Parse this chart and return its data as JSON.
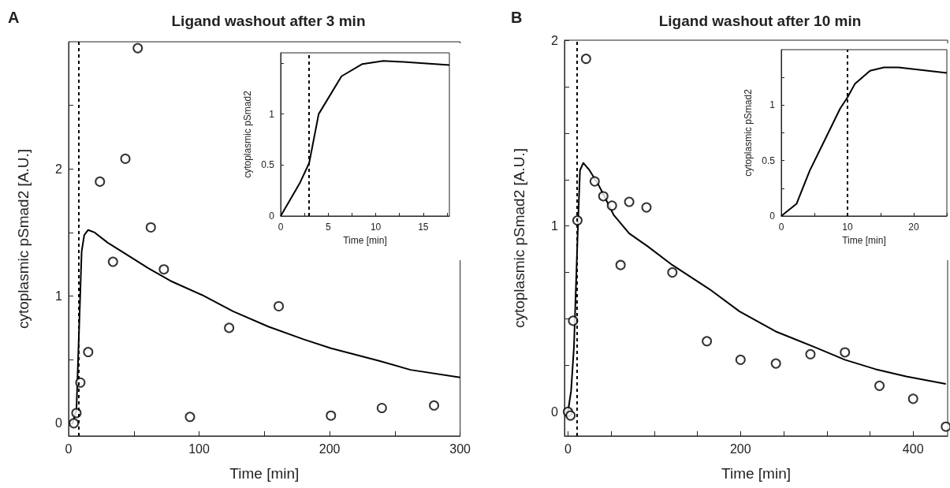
{
  "chart_data": [
    {
      "type": "line",
      "title": "Ligand washout after 3 min",
      "annotations": [
        "A"
      ],
      "xlabel": "Time [min]",
      "ylabel": "cytoplasmic pSmad2 [A.U.]",
      "xlim": [
        0,
        300
      ],
      "xticks": [
        0,
        {
          "value": 50,
          "label": null
        },
        100,
        {
          "value": 150,
          "label": null
        },
        200,
        {
          "value": 250,
          "label": null
        },
        300
      ],
      "ylim": [
        -0.1,
        3.0
      ],
      "yticks": [
        0,
        {
          "value": 0.5,
          "label": null
        },
        1,
        {
          "value": 1.5,
          "label": null
        },
        2,
        {
          "value": 2.5,
          "label": null
        }
      ],
      "series": [
        {
          "type": "scatter",
          "marker": "circle",
          "color": "#000000",
          "x": [
            4,
            6,
            9,
            15,
            24,
            34,
            43.5,
            53,
            63,
            73,
            93,
            123,
            161,
            201,
            240,
            280
          ],
          "values": [
            0,
            0.08,
            0.32,
            0.56,
            1.9,
            1.27,
            2.08,
            2.95,
            1.54,
            1.21,
            0.05,
            0.75,
            0.92,
            0.06,
            0.12,
            0.14
          ]
        },
        {
          "type": "line",
          "marker": "none",
          "color": "#000000",
          "x": [
            3,
            6,
            10,
            12,
            15,
            20,
            30,
            44,
            61,
            78,
            102,
            126,
            153,
            180,
            201,
            238,
            262,
            300
          ],
          "values": [
            0,
            0.1,
            1.35,
            1.48,
            1.52,
            1.5,
            1.42,
            1.33,
            1.22,
            1.12,
            1.01,
            0.88,
            0.76,
            0.66,
            0.59,
            0.49,
            0.42,
            0.36
          ]
        }
      ],
      "ref_lines": [
        {
          "axis": "x",
          "value": 7.5,
          "line_style": "dashed",
          "color": "#000000"
        }
      ]
    },
    {
      "type": "line",
      "xlabel": "Time [min]",
      "ylabel": "cytoplasmic pSmad2",
      "xlim": [
        0,
        17.75
      ],
      "xticks": [
        0,
        {
          "value": 2.5,
          "label": null
        },
        5,
        {
          "value": 7.5,
          "label": null
        },
        10,
        {
          "value": 12.5,
          "label": null
        },
        15,
        {
          "value": 17.5,
          "label": null
        }
      ],
      "ylim": [
        0,
        1.6
      ],
      "yticks": [
        0,
        0.5,
        1,
        {
          "value": 1.5,
          "label": null
        }
      ],
      "series": [
        {
          "type": "line",
          "marker": "none",
          "color": "#000000",
          "x": [
            0,
            2,
            3,
            4,
            6.4,
            8.6,
            10.8,
            13.2,
            17.75
          ],
          "values": [
            0,
            0.32,
            0.52,
            1.0,
            1.37,
            1.49,
            1.52,
            1.51,
            1.48
          ]
        }
      ],
      "ref_lines": [
        {
          "axis": "x",
          "value": 3,
          "line_style": "dashed",
          "color": "#000000"
        }
      ]
    },
    {
      "type": "line",
      "title": "Ligand washout after 10 min",
      "annotations": [
        "B"
      ],
      "xlabel": "Time [min]",
      "ylabel": "cytoplasmic pSmad2 [A.U.]",
      "xlim": [
        -4,
        440
      ],
      "xticks": [
        0,
        {
          "value": 50,
          "label": null
        },
        {
          "value": 100,
          "label": null
        },
        {
          "value": 150,
          "label": null
        },
        200,
        {
          "value": 250,
          "label": null
        },
        {
          "value": 300,
          "label": null
        },
        {
          "value": 350,
          "label": null
        },
        400
      ],
      "ylim": [
        -0.13,
        2
      ],
      "yticks": [
        0,
        {
          "value": 0.25,
          "label": null
        },
        {
          "value": 0.5,
          "label": null
        },
        {
          "value": 0.75,
          "label": null
        },
        1,
        {
          "value": 1.25,
          "label": null
        },
        {
          "value": 1.5,
          "label": null
        },
        {
          "value": 1.75,
          "label": null
        },
        2
      ],
      "series": [
        {
          "type": "scatter",
          "marker": "circle",
          "color": "#000000",
          "x": [
            0,
            3,
            6,
            11,
            21,
            31,
            41,
            51,
            61,
            71,
            91,
            121,
            161,
            200,
            241,
            281,
            321,
            361,
            400,
            438
          ],
          "values": [
            0,
            -0.02,
            0.49,
            1.03,
            1.9,
            1.24,
            1.16,
            1.11,
            0.79,
            1.13,
            1.1,
            0.75,
            0.38,
            0.28,
            0.26,
            0.31,
            0.32,
            0.14,
            0.07,
            -0.08
          ]
        },
        {
          "type": "line",
          "marker": "none",
          "color": "#000000",
          "x": [
            0,
            3.6,
            7,
            11.8,
            14,
            17.8,
            25,
            35.6,
            53,
            71,
            92.6,
            121,
            164,
            199,
            242,
            285,
            321,
            356,
            392,
            438
          ],
          "values": [
            0,
            0.11,
            0.35,
            1.03,
            1.3,
            1.34,
            1.3,
            1.22,
            1.06,
            0.96,
            0.89,
            0.79,
            0.66,
            0.54,
            0.43,
            0.35,
            0.28,
            0.23,
            0.19,
            0.15
          ]
        }
      ],
      "ref_lines": [
        {
          "axis": "x",
          "value": 10.5,
          "line_style": "dashed",
          "color": "#000000"
        }
      ]
    },
    {
      "type": "line",
      "xlabel": "Time [min]",
      "ylabel": "cytoplasmic pSmad2",
      "xlim": [
        0,
        25
      ],
      "xticks": [
        0,
        {
          "value": 5,
          "label": null
        },
        10,
        {
          "value": 15,
          "label": null
        },
        20,
        {
          "value": 25,
          "label": null
        }
      ],
      "ylim": [
        0,
        1.5
      ],
      "yticks": [
        0,
        {
          "value": 0.25,
          "label": null
        },
        0.5,
        {
          "value": 0.75,
          "label": null
        },
        1,
        {
          "value": 1.25,
          "label": null
        }
      ],
      "series": [
        {
          "type": "line",
          "marker": "none",
          "color": "#000000",
          "x": [
            0,
            2.3,
            4.3,
            6.6,
            8.9,
            10,
            11.1,
            13.4,
            15.5,
            17.7,
            25
          ],
          "values": [
            0,
            0.11,
            0.41,
            0.69,
            0.97,
            1.07,
            1.19,
            1.31,
            1.34,
            1.34,
            1.29
          ]
        }
      ],
      "ref_lines": [
        {
          "axis": "x",
          "value": 10,
          "line_style": "dashed",
          "color": "#000000"
        }
      ]
    }
  ]
}
